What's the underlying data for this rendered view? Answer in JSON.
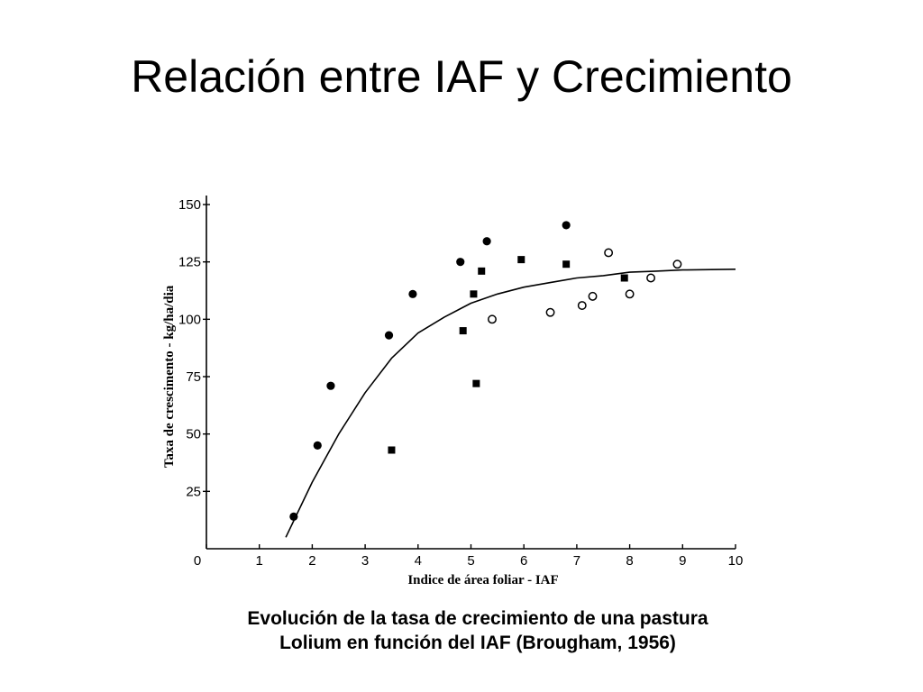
{
  "slide": {
    "title": "Relación entre IAF y Crecimiento"
  },
  "caption": {
    "line1": "Evolución de la tasa de crecimiento de una pastura",
    "line2": "Lolium en función del IAF (Brougham, 1956)"
  },
  "chart_data": {
    "type": "scatter",
    "xlabel": "Indice de área foliar - IAF",
    "ylabel": "Taxa de crescimento - kg/ha/dia",
    "xlim": [
      0,
      10
    ],
    "ylim": [
      0,
      150
    ],
    "x_ticks": [
      0,
      1,
      2,
      3,
      4,
      5,
      6,
      7,
      8,
      9,
      10
    ],
    "y_ticks": [
      25,
      50,
      75,
      100,
      125,
      150
    ],
    "y_tick_labels": [
      "25",
      "50",
      "75",
      "100",
      "125",
      "150"
    ],
    "grid": false,
    "series": [
      {
        "marker": "filled-circle",
        "points": [
          [
            1.65,
            14
          ],
          [
            2.1,
            45
          ],
          [
            2.35,
            71
          ],
          [
            3.45,
            93
          ],
          [
            3.9,
            111
          ],
          [
            4.8,
            125
          ],
          [
            5.3,
            134
          ],
          [
            6.8,
            141
          ]
        ]
      },
      {
        "marker": "filled-square",
        "points": [
          [
            3.5,
            43
          ],
          [
            4.85,
            95
          ],
          [
            5.05,
            111
          ],
          [
            5.1,
            72
          ],
          [
            5.2,
            121
          ],
          [
            5.95,
            126
          ],
          [
            6.8,
            124
          ],
          [
            7.9,
            118
          ]
        ]
      },
      {
        "marker": "open-circle",
        "points": [
          [
            5.4,
            100
          ],
          [
            6.5,
            103
          ],
          [
            7.1,
            106
          ],
          [
            7.3,
            110
          ],
          [
            7.6,
            129
          ],
          [
            8.0,
            111
          ],
          [
            8.4,
            118
          ],
          [
            8.9,
            124
          ]
        ]
      }
    ],
    "fitted_curve": {
      "points": [
        [
          1.5,
          5
        ],
        [
          2.0,
          29
        ],
        [
          2.5,
          50
        ],
        [
          3.0,
          68
        ],
        [
          3.5,
          83
        ],
        [
          4.0,
          94
        ],
        [
          4.5,
          101
        ],
        [
          5.0,
          107
        ],
        [
          5.5,
          111
        ],
        [
          6.0,
          114
        ],
        [
          6.5,
          116
        ],
        [
          7.0,
          118
        ],
        [
          7.5,
          119
        ],
        [
          8.0,
          120.5
        ],
        [
          8.5,
          121
        ],
        [
          9.0,
          121.5
        ],
        [
          10.0,
          121.8
        ]
      ]
    }
  }
}
